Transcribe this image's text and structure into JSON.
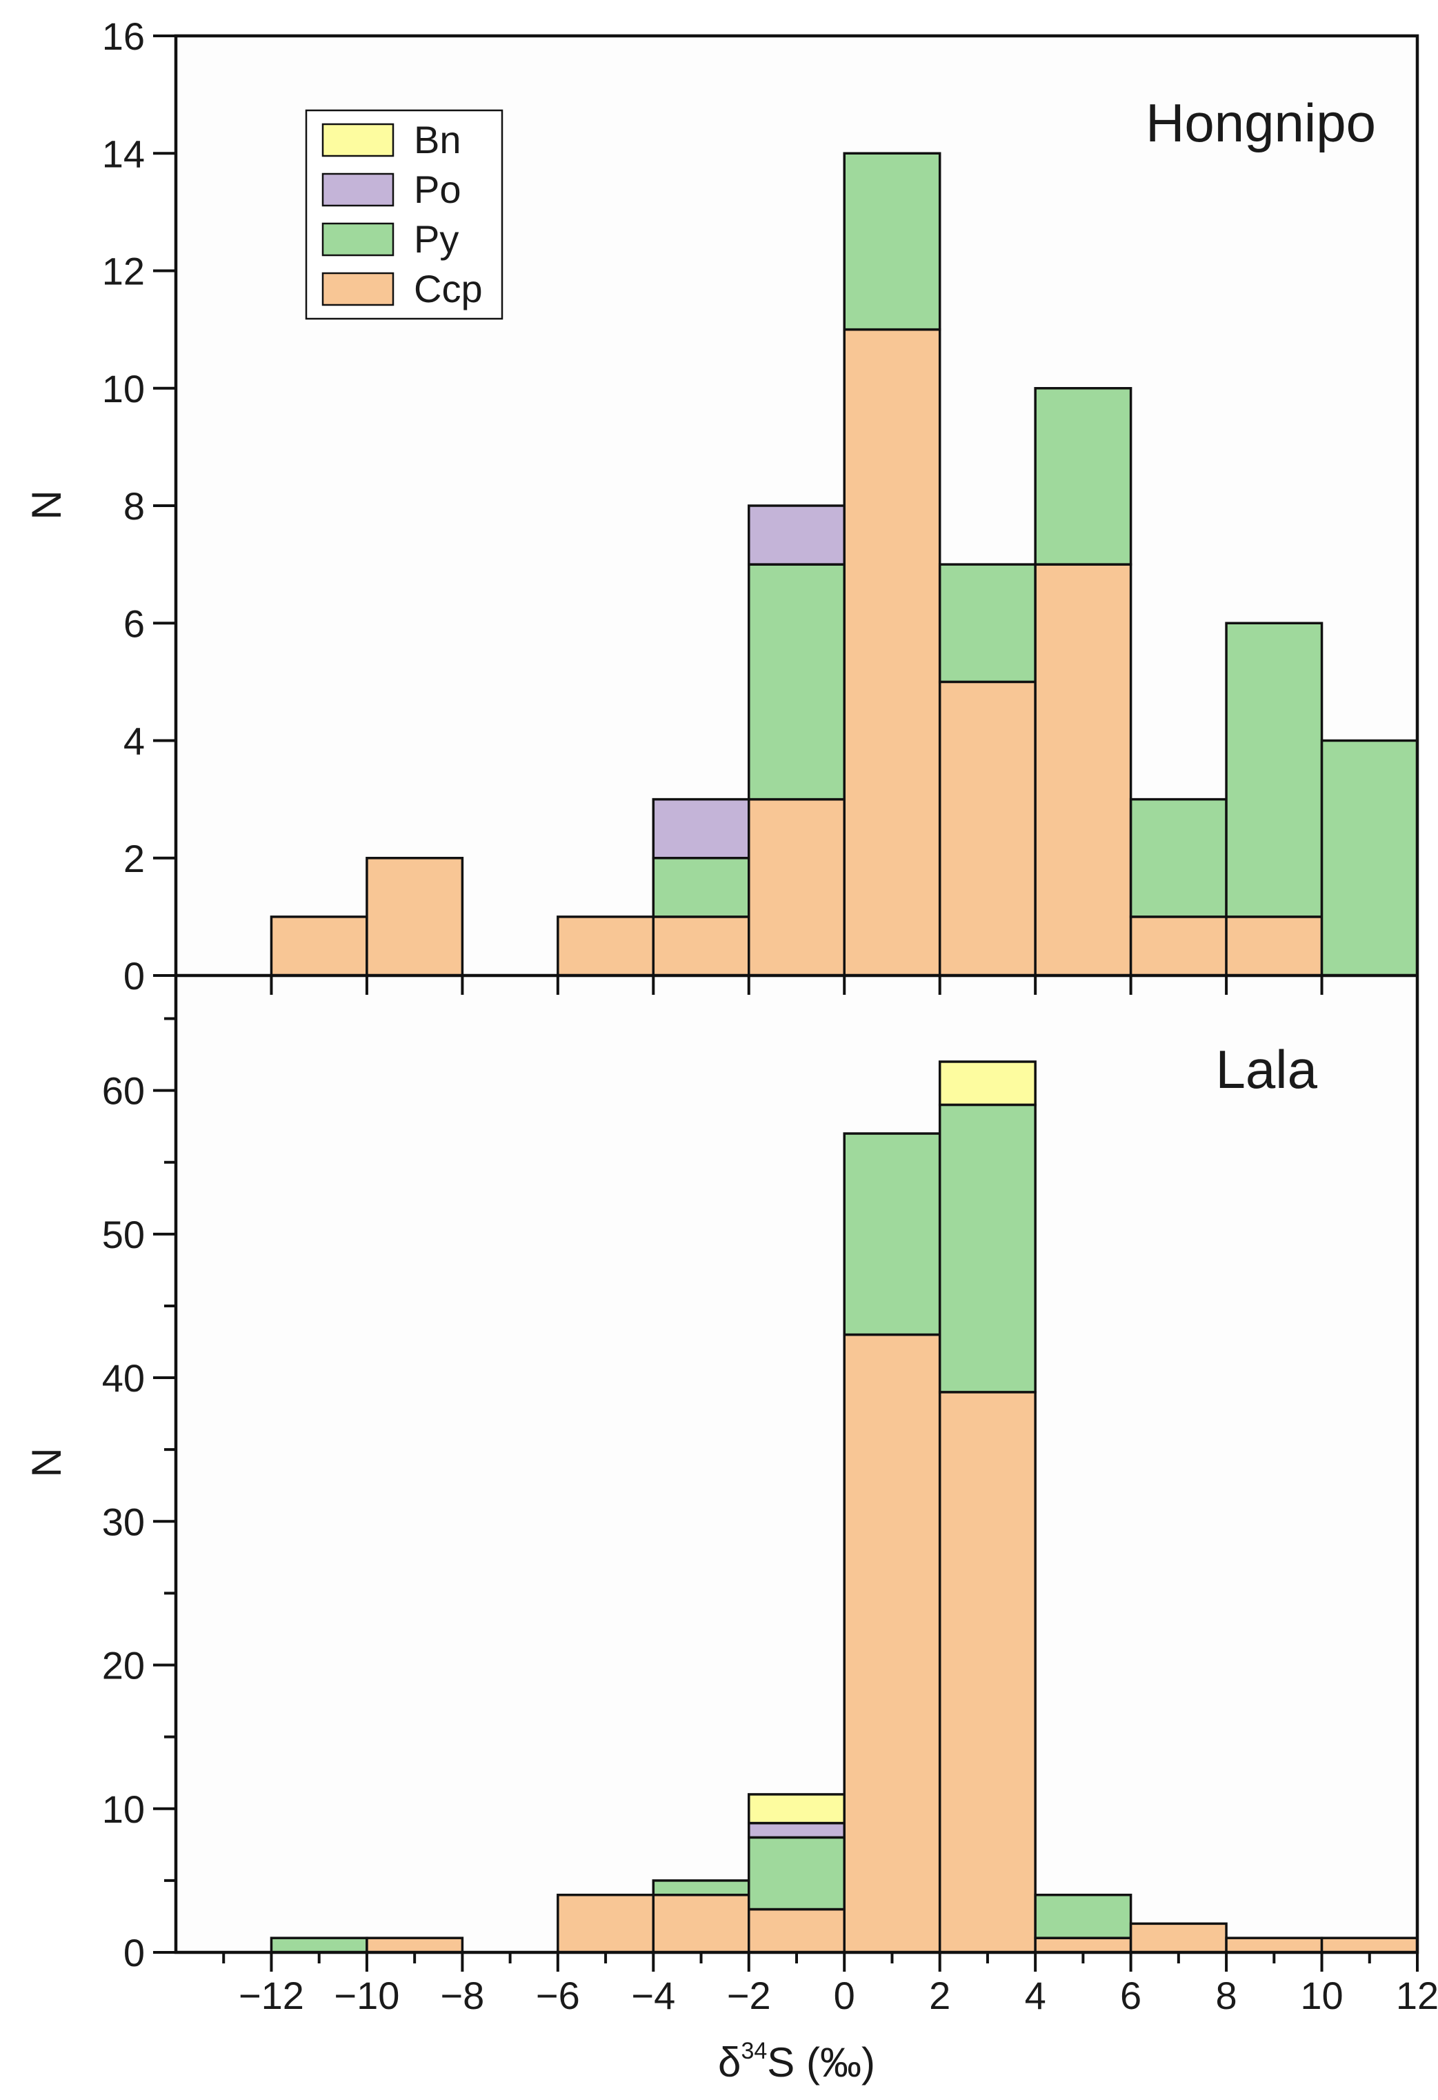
{
  "chart_data": [
    {
      "type": "bar",
      "stacked": true,
      "title": "Hongnipo",
      "ylabel": "N",
      "xlabel": "",
      "xlim": [
        -14,
        12
      ],
      "ylim": [
        0,
        16
      ],
      "yticks": [
        "0",
        "2",
        "4",
        "6",
        "8",
        "10",
        "12",
        "14",
        "16"
      ],
      "bins": [
        [
          -12,
          -10
        ],
        [
          -10,
          -8
        ],
        [
          -8,
          -6
        ],
        [
          -6,
          -4
        ],
        [
          -4,
          -2
        ],
        [
          -2,
          0
        ],
        [
          0,
          2
        ],
        [
          2,
          4
        ],
        [
          4,
          6
        ],
        [
          6,
          8
        ],
        [
          8,
          10
        ],
        [
          10,
          12
        ]
      ],
      "series": [
        {
          "name": "Ccp",
          "color": "#f8c695",
          "values": [
            1,
            2,
            0,
            1,
            1,
            3,
            11,
            5,
            7,
            1,
            1,
            0
          ]
        },
        {
          "name": "Py",
          "color": "#9fd99c",
          "values": [
            0,
            0,
            0,
            0,
            1,
            4,
            3,
            2,
            3,
            2,
            5,
            4
          ]
        },
        {
          "name": "Po",
          "color": "#c4b4d8",
          "values": [
            0,
            0,
            0,
            0,
            1,
            1,
            0,
            0,
            0,
            0,
            0,
            0
          ]
        },
        {
          "name": "Bn",
          "color": "#fdfc9f",
          "values": [
            0,
            0,
            0,
            0,
            0,
            0,
            0,
            0,
            0,
            0,
            0,
            0
          ]
        }
      ],
      "legend": {
        "entries": [
          "Bn",
          "Po",
          "Py",
          "Ccp"
        ],
        "placement": "top-left"
      }
    },
    {
      "type": "bar",
      "stacked": true,
      "title": "Lala",
      "ylabel": "N",
      "xlabel": "δ34S (‰)",
      "xlim": [
        -14,
        12
      ],
      "ylim": [
        0,
        68
      ],
      "yticks": [
        "0",
        "10",
        "20",
        "30",
        "40",
        "50",
        "60"
      ],
      "xticks": [
        "−12",
        "−10",
        "−8",
        "−6",
        "−4",
        "−2",
        "0",
        "2",
        "4",
        "6",
        "8",
        "10",
        "12"
      ],
      "bins": [
        [
          -12,
          -10
        ],
        [
          -10,
          -8
        ],
        [
          -8,
          -6
        ],
        [
          -6,
          -4
        ],
        [
          -4,
          -2
        ],
        [
          -2,
          0
        ],
        [
          0,
          2
        ],
        [
          2,
          4
        ],
        [
          4,
          6
        ],
        [
          6,
          8
        ],
        [
          8,
          10
        ],
        [
          10,
          12
        ]
      ],
      "series": [
        {
          "name": "Ccp",
          "color": "#f8c695",
          "values": [
            0,
            1,
            0,
            4,
            4,
            3,
            43,
            39,
            1,
            2,
            1,
            1
          ]
        },
        {
          "name": "Py",
          "color": "#9fd99c",
          "values": [
            1,
            0,
            0,
            0,
            1,
            5,
            14,
            20,
            3,
            0,
            0,
            0
          ]
        },
        {
          "name": "Po",
          "color": "#c4b4d8",
          "values": [
            0,
            0,
            0,
            0,
            0,
            1,
            0,
            0,
            0,
            0,
            0,
            0
          ]
        },
        {
          "name": "Bn",
          "color": "#fdfc9f",
          "values": [
            0,
            0,
            0,
            0,
            0,
            2,
            0,
            3,
            0,
            0,
            0,
            0
          ]
        }
      ]
    }
  ],
  "xlabel_parts": {
    "delta": "δ",
    "sup": "34",
    "rest": "S (‰)"
  }
}
